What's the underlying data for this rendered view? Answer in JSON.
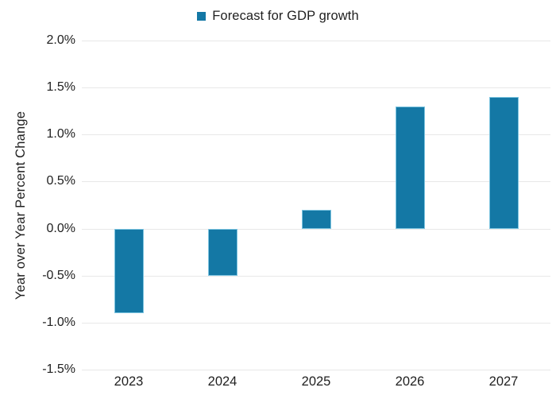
{
  "chart_data": {
    "type": "bar",
    "title": "",
    "legend": {
      "label": "Forecast for GDP growth",
      "position": "top-center"
    },
    "categories": [
      "2023",
      "2024",
      "2025",
      "2026",
      "2027"
    ],
    "values": [
      -0.9,
      -0.5,
      0.2,
      1.3,
      1.4
    ],
    "xlabel": "",
    "ylabel": "Year over Year Percent Change",
    "ylim": [
      -1.5,
      2.0
    ],
    "ytick_step": 0.5,
    "ytick_labels_top_to_bottom": [
      "2.0%",
      "1.5%",
      "1.0%",
      "0.5%",
      "0.0%",
      "-0.5%",
      "-1.0%",
      "-1.5%"
    ],
    "grid": true,
    "colors": {
      "bar_fill": "#1478a5",
      "bar_border": "#7cc4e0",
      "gridline": "#e8e8e8",
      "text": "#1f1f1f",
      "background": "#ffffff"
    }
  }
}
